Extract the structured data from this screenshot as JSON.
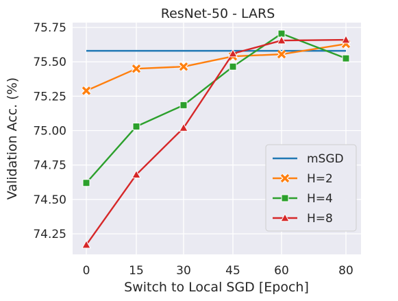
{
  "chart_data": {
    "type": "line",
    "title": "ResNet-50 - LARS",
    "xlabel": "Switch to Local SGD [Epoch]",
    "ylabel": "Validation Acc. (%)",
    "x": [
      0,
      15,
      30,
      45,
      60,
      80
    ],
    "x_tick_labels": [
      "0",
      "15",
      "30",
      "45",
      "60",
      "80"
    ],
    "y_ticks": [
      74.25,
      74.5,
      74.75,
      75.0,
      75.25,
      75.5,
      75.75
    ],
    "y_tick_labels": [
      "74.25",
      "74.50",
      "74.75",
      "75.00",
      "75.25",
      "75.50",
      "75.75"
    ],
    "ylim": [
      74.08,
      75.8
    ],
    "grid": true,
    "legend_position": "lower-right",
    "series": [
      {
        "name": "mSGD",
        "color": "#1f77b4",
        "marker": "none",
        "values": [
          75.58,
          75.58,
          75.58,
          75.58,
          75.58,
          75.58
        ]
      },
      {
        "name": "H=2",
        "color": "#ff7f0e",
        "marker": "x",
        "values": [
          75.29,
          75.45,
          75.465,
          75.54,
          75.555,
          75.63
        ]
      },
      {
        "name": "H=4",
        "color": "#2ca02c",
        "marker": "square",
        "values": [
          74.62,
          75.03,
          75.185,
          75.465,
          75.705,
          75.525
        ]
      },
      {
        "name": "H=8",
        "color": "#d62728",
        "marker": "triangle",
        "values": [
          74.17,
          74.68,
          75.02,
          75.56,
          75.655,
          75.66
        ]
      }
    ]
  }
}
